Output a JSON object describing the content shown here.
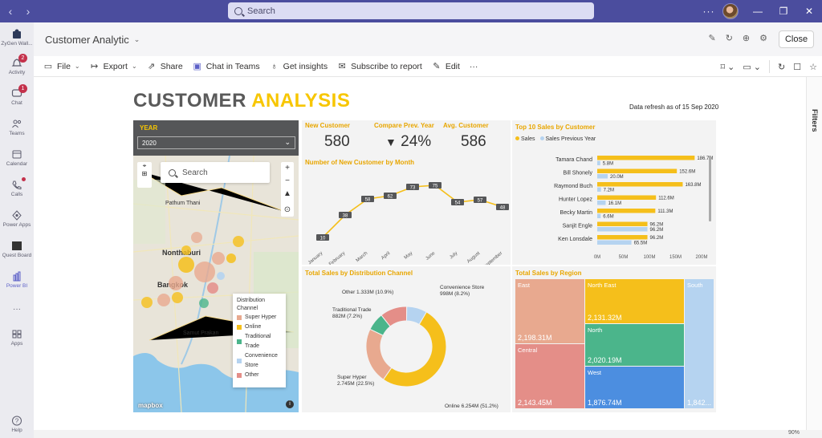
{
  "titlebar": {
    "search_placeholder": "Search",
    "more": "···"
  },
  "rail": [
    {
      "name": "rail-zygen",
      "label": "ZyGen Wall..."
    },
    {
      "name": "rail-activity",
      "label": "Activity",
      "badge": "2"
    },
    {
      "name": "rail-chat",
      "label": "Chat",
      "badge": "1"
    },
    {
      "name": "rail-teams",
      "label": "Teams"
    },
    {
      "name": "rail-calendar",
      "label": "Calendar"
    },
    {
      "name": "rail-calls",
      "label": "Calls"
    },
    {
      "name": "rail-power-apps",
      "label": "Power Apps"
    },
    {
      "name": "rail-quest-board",
      "label": "Quest Board"
    },
    {
      "name": "rail-power-bi",
      "label": "Power BI"
    },
    {
      "name": "rail-more",
      "label": "···"
    },
    {
      "name": "rail-apps",
      "label": "Apps"
    },
    {
      "name": "rail-help",
      "label": "Help"
    }
  ],
  "app": {
    "title": "Customer Analytic",
    "close_label": "Close"
  },
  "toolbar": {
    "file": "File",
    "export": "Export",
    "share": "Share",
    "chat_in_teams": "Chat in Teams",
    "insights": "Get insights",
    "subscribe": "Subscribe to report",
    "edit": "Edit",
    "more": "···"
  },
  "filters_label": "Filters",
  "zoom": "90%",
  "report": {
    "title_part1": "CUSTOMER ",
    "title_part2": "ANALYSIS",
    "refresh": "Data refresh as of 15 Sep 2020",
    "year_label": "YEAR",
    "year_value": "2020",
    "kpis": [
      {
        "title": "New Customer",
        "value": "580"
      },
      {
        "title": "Compare Prev. Year",
        "value": "24%",
        "arrow": "▼"
      },
      {
        "title": "Avg. Customer",
        "value": "586"
      }
    ],
    "map": {
      "search_placeholder": "Search",
      "labels": {
        "pathum_thani": "Pathum Thani",
        "nonthaburi": "Nonthaburi",
        "bangkok": "Bangkok",
        "samut_prakan": "Samut Prakan"
      },
      "attribution": "mapbox",
      "legend_title": "Distribution Channel",
      "legend_items": [
        {
          "label": "Super Hyper",
          "color": "#e8a98f"
        },
        {
          "label": "Online",
          "color": "#f5bf1b"
        },
        {
          "label": "Traditional Trade",
          "color": "#4bb58b"
        },
        {
          "label": "Convenience Store",
          "color": "#b5d3f0"
        },
        {
          "label": "Other",
          "color": "#e48e88"
        }
      ]
    },
    "colors": {
      "accent": "#f7c600",
      "title_grey": "#5a5a5a",
      "previous": "#b5d3f0",
      "teams_purple": "#4b4d9e"
    }
  },
  "chart_data": [
    {
      "type": "line",
      "title": "Number of New Customer by Month",
      "categories": [
        "January",
        "February",
        "March",
        "April",
        "May",
        "June",
        "July",
        "August",
        "September"
      ],
      "values": [
        10,
        38,
        58,
        62,
        73,
        75,
        54,
        57,
        48
      ],
      "labels": [
        "10",
        "38",
        "58",
        "62",
        "73",
        "75",
        "54",
        "57",
        "48"
      ],
      "ylim": [
        0,
        90
      ]
    },
    {
      "type": "bar",
      "title": "Top 10 Sales by Customer",
      "legend": [
        "Sales",
        "Sales Previous Year"
      ],
      "categories": [
        "Tamara Chand",
        "Bill Shonely",
        "Raymond Buch",
        "Hunter Lopez",
        "Becky Martin",
        "Sanjit Engle",
        "Ken Lonsdale"
      ],
      "series": [
        {
          "name": "Sales",
          "values": [
            186.7,
            152.6,
            163.8,
            112.6,
            111.3,
            96.2,
            96.2
          ],
          "labels": [
            "186.7M",
            "152.6M",
            "163.8M",
            "112.6M",
            "111.3M",
            "96.2M",
            "96.2M"
          ]
        },
        {
          "name": "Sales Previous Year",
          "values": [
            5.8,
            20.0,
            7.2,
            16.1,
            6.6,
            96.2,
            65.5
          ],
          "labels": [
            "5.8M",
            "20.0M",
            "7.2M",
            "16.1M",
            "6.6M",
            "96.2M",
            "65.5M"
          ]
        }
      ],
      "x_ticks": [
        "0M",
        "50M",
        "100M",
        "150M",
        "200M"
      ],
      "xlim": [
        0,
        200
      ]
    },
    {
      "type": "pie",
      "title": "Total Sales by Distribution Channel",
      "categories": [
        "Online",
        "Super Hyper",
        "Traditional Trade",
        "Other",
        "Convenience Store"
      ],
      "values": [
        51.2,
        22.5,
        7.2,
        10.9,
        8.2
      ],
      "labels": [
        "Online 6.254M (51.2%)",
        "Super Hyper 2.745M (22.5%)",
        "Traditional Trade 882M (7.2%)",
        "Other 1.333M (10.9%)",
        "Convenience Store 998M (8.2%)"
      ],
      "colors": [
        "#f5bf1b",
        "#e8a98f",
        "#4bb58b",
        "#e48e88",
        "#b5d3f0"
      ]
    },
    {
      "type": "heatmap",
      "title": "Total Sales by Region",
      "categories": [
        "East",
        "Central",
        "North East",
        "North",
        "West",
        "South"
      ],
      "values": [
        "2,198.31M",
        "2,143.45M",
        "2,131.32M",
        "2,020.19M",
        "1,876.74M",
        "1,842..."
      ]
    }
  ]
}
